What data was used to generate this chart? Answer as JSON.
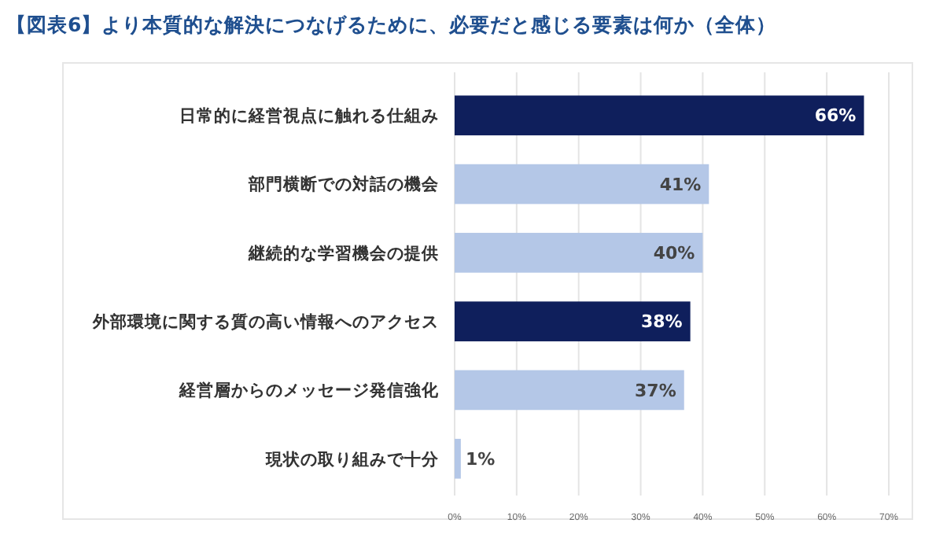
{
  "chart_data": {
    "type": "bar",
    "orientation": "horizontal",
    "title": "【図表6】より本質的な解決につなげるために、必要だと感じる要素は何か（全体）",
    "categories": [
      "日常的に経営視点に触れる仕組み",
      "部門横断での対話の機会",
      "継続的な学習機会の提供",
      "外部環境に関する質の高い情報へのアクセス",
      "経営層からのメッセージ発信強化",
      "現状の取り組みで十分"
    ],
    "values": [
      66,
      41,
      40,
      38,
      37,
      1
    ],
    "value_labels": [
      "66%",
      "41%",
      "40%",
      "38%",
      "37%",
      "1%"
    ],
    "colors": [
      "#0f1f5c",
      "#b4c7e7",
      "#b4c7e7",
      "#0f1f5c",
      "#b4c7e7",
      "#b4c7e7"
    ],
    "xlim": [
      0,
      70
    ],
    "xticks": [
      {
        "value": 0,
        "label": "0%"
      },
      {
        "value": 10,
        "label": "10%"
      },
      {
        "value": 20,
        "label": "20%"
      },
      {
        "value": 30,
        "label": "30%"
      },
      {
        "value": 40,
        "label": "40%"
      },
      {
        "value": 50,
        "label": "50%"
      },
      {
        "value": 60,
        "label": "60%"
      },
      {
        "value": 70,
        "label": "70%"
      }
    ],
    "grid": "x"
  }
}
